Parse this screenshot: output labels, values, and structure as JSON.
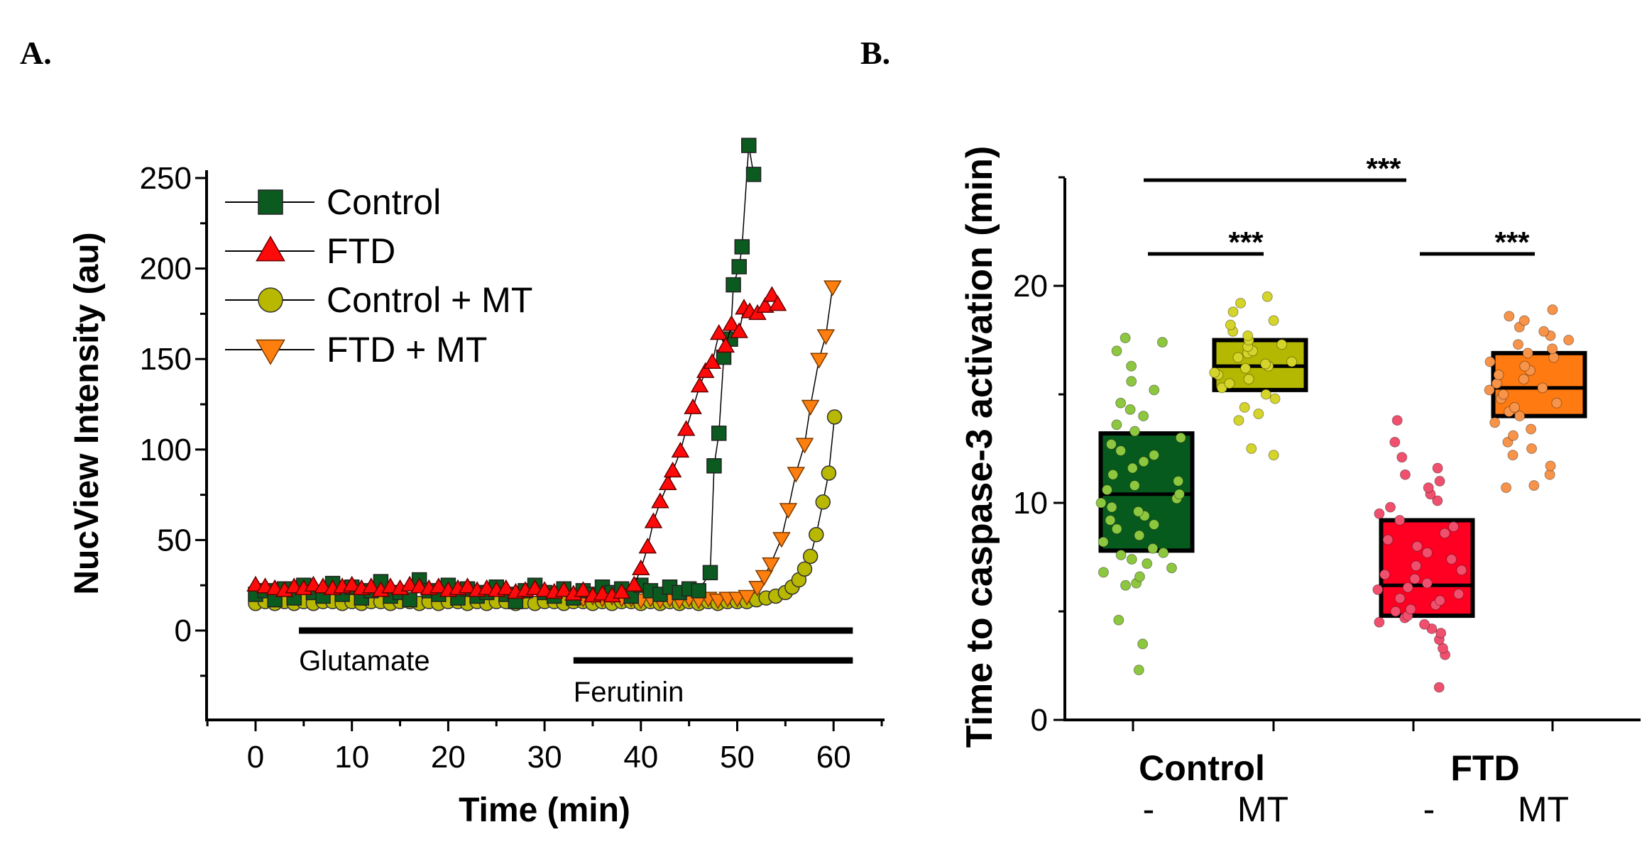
{
  "panel_labels": {
    "a": "A.",
    "b": "B."
  },
  "colors": {
    "control": "#0b5a1f",
    "ftd": "#ff0a0a",
    "control_mt": "#b8b800",
    "ftd_mt": "#ff7f0e",
    "box_control": "#075a1e",
    "box_control_mt": "#b5b800",
    "box_ftd": "#ff0022",
    "box_ftd_mt": "#ff7a10",
    "dot_control": "#8dc63f",
    "dot_control_mt": "#d4d42a",
    "dot_ftd": "#f0506e",
    "dot_ftd_mt": "#f7944a"
  },
  "chart_data": [
    {
      "type": "line",
      "title": "",
      "xlabel": "Time (min)",
      "ylabel": "NucView Intensity (au)",
      "xlim": [
        -5,
        65
      ],
      "ylim": [
        -50,
        260
      ],
      "xticks": [
        "0",
        "10",
        "20",
        "30",
        "40",
        "50",
        "60"
      ],
      "xtick_values": [
        0,
        10,
        20,
        30,
        40,
        50,
        60
      ],
      "yticks": [
        "0",
        "50",
        "100",
        "150",
        "200",
        "250"
      ],
      "ytick_values": [
        0,
        50,
        100,
        150,
        200,
        250
      ],
      "legend_position": "top-left",
      "annotations": [
        {
          "label": "Glutamate",
          "from": 4.5,
          "to": 62
        },
        {
          "label": "Ferutinin",
          "from": 33,
          "to": 62
        }
      ],
      "series": [
        {
          "name": "Control",
          "marker": "square",
          "points": [
            [
              0,
              20
            ],
            [
              1,
              22
            ],
            [
              2,
              17
            ],
            [
              3,
              23
            ],
            [
              4,
              18
            ],
            [
              5,
              25
            ],
            [
              6,
              21
            ],
            [
              7,
              19
            ],
            [
              8,
              26
            ],
            [
              9,
              20
            ],
            [
              10,
              24
            ],
            [
              11,
              18
            ],
            [
              12,
              22
            ],
            [
              13,
              27
            ],
            [
              14,
              19
            ],
            [
              15,
              21
            ],
            [
              16,
              17
            ],
            [
              17,
              28
            ],
            [
              18,
              22
            ],
            [
              19,
              20
            ],
            [
              20,
              25
            ],
            [
              21,
              18
            ],
            [
              22,
              23
            ],
            [
              23,
              19
            ],
            [
              24,
              21
            ],
            [
              25,
              24
            ],
            [
              26,
              20
            ],
            [
              27,
              16
            ],
            [
              28,
              22
            ],
            [
              29,
              25
            ],
            [
              30,
              21
            ],
            [
              31,
              19
            ],
            [
              32,
              23
            ],
            [
              33,
              18
            ],
            [
              34,
              22
            ],
            [
              35,
              20
            ],
            [
              36,
              24
            ],
            [
              37,
              21
            ],
            [
              38,
              23
            ],
            [
              39,
              19
            ],
            [
              40,
              25
            ],
            [
              41,
              22
            ],
            [
              42,
              20
            ],
            [
              43,
              24
            ],
            [
              44,
              21
            ],
            [
              45,
              23
            ],
            [
              46,
              22
            ],
            [
              47.2,
              32
            ],
            [
              47.6,
              91
            ],
            [
              48.1,
              109
            ],
            [
              48.6,
              151
            ],
            [
              49.3,
              161
            ],
            [
              49.6,
              191
            ],
            [
              50.2,
              201
            ],
            [
              50.5,
              212
            ],
            [
              51.2,
              268
            ],
            [
              51.7,
              252
            ]
          ]
        },
        {
          "name": "FTD",
          "marker": "triangle-up",
          "points": [
            [
              0,
              25
            ],
            [
              1,
              24
            ],
            [
              2,
              23
            ],
            [
              3,
              22
            ],
            [
              4,
              24
            ],
            [
              5,
              23
            ],
            [
              6,
              25
            ],
            [
              7,
              24
            ],
            [
              8,
              23
            ],
            [
              9,
              24
            ],
            [
              10,
              25
            ],
            [
              11,
              23
            ],
            [
              12,
              24
            ],
            [
              13,
              22
            ],
            [
              14,
              24
            ],
            [
              15,
              23
            ],
            [
              16,
              25
            ],
            [
              17,
              24
            ],
            [
              18,
              23
            ],
            [
              19,
              24
            ],
            [
              20,
              22
            ],
            [
              21,
              23
            ],
            [
              22,
              24
            ],
            [
              23,
              22
            ],
            [
              24,
              23
            ],
            [
              25,
              22
            ],
            [
              26,
              23
            ],
            [
              27,
              21
            ],
            [
              28,
              22
            ],
            [
              29,
              23
            ],
            [
              30,
              22
            ],
            [
              31,
              21
            ],
            [
              32,
              22
            ],
            [
              33,
              20
            ],
            [
              34,
              22
            ],
            [
              35,
              19
            ],
            [
              36,
              20
            ],
            [
              37,
              19
            ],
            [
              38,
              21
            ],
            [
              39.3,
              25
            ],
            [
              40.0,
              34
            ],
            [
              40.7,
              46
            ],
            [
              41.3,
              60
            ],
            [
              42.0,
              71
            ],
            [
              42.8,
              81
            ],
            [
              43.3,
              88
            ],
            [
              44.1,
              99
            ],
            [
              44.7,
              111
            ],
            [
              45.4,
              123
            ],
            [
              46.1,
              135
            ],
            [
              46.7,
              143
            ],
            [
              47.4,
              148
            ],
            [
              48.1,
              164
            ],
            [
              48.8,
              157
            ],
            [
              49.4,
              169
            ],
            [
              50.2,
              165
            ],
            [
              50.7,
              178
            ],
            [
              51.3,
              176
            ],
            [
              52.1,
              175
            ],
            [
              52.9,
              179
            ],
            [
              53.6,
              185
            ],
            [
              54.2,
              180
            ]
          ]
        },
        {
          "name": "Control + MT",
          "marker": "circle",
          "points": [
            [
              0,
              15
            ],
            [
              1,
              16
            ],
            [
              2,
              15
            ],
            [
              3,
              16
            ],
            [
              4,
              15
            ],
            [
              5,
              16
            ],
            [
              6,
              15
            ],
            [
              7,
              16
            ],
            [
              8,
              16
            ],
            [
              9,
              15
            ],
            [
              10,
              16
            ],
            [
              11,
              15
            ],
            [
              12,
              16
            ],
            [
              13,
              16
            ],
            [
              14,
              15
            ],
            [
              15,
              16
            ],
            [
              16,
              16
            ],
            [
              17,
              15
            ],
            [
              18,
              16
            ],
            [
              19,
              15
            ],
            [
              20,
              16
            ],
            [
              21,
              16
            ],
            [
              22,
              15
            ],
            [
              23,
              16
            ],
            [
              24,
              15
            ],
            [
              25,
              16
            ],
            [
              26,
              16
            ],
            [
              27,
              15
            ],
            [
              28,
              16
            ],
            [
              29,
              15
            ],
            [
              30,
              16
            ],
            [
              31,
              16
            ],
            [
              32,
              15
            ],
            [
              33,
              16
            ],
            [
              34,
              16
            ],
            [
              35,
              15
            ],
            [
              36,
              16
            ],
            [
              37,
              15
            ],
            [
              38,
              16
            ],
            [
              39,
              16
            ],
            [
              40,
              15
            ],
            [
              41,
              16
            ],
            [
              42,
              15
            ],
            [
              43,
              16
            ],
            [
              44,
              15
            ],
            [
              45,
              16
            ],
            [
              46,
              15
            ],
            [
              47,
              16
            ],
            [
              48,
              15
            ],
            [
              49,
              16
            ],
            [
              50,
              16
            ],
            [
              51,
              16
            ],
            [
              52,
              17
            ],
            [
              53,
              18
            ],
            [
              54,
              19
            ],
            [
              55,
              21
            ],
            [
              55.7,
              24
            ],
            [
              56.4,
              28
            ],
            [
              57.0,
              34
            ],
            [
              57.6,
              41
            ],
            [
              58.2,
              53
            ],
            [
              58.9,
              71
            ],
            [
              59.5,
              87
            ],
            [
              60.1,
              118
            ]
          ]
        },
        {
          "name": "FTD + MT",
          "marker": "triangle-down",
          "points": [
            [
              33,
              19
            ],
            [
              34,
              18
            ],
            [
              35,
              19
            ],
            [
              36,
              18
            ],
            [
              37,
              19
            ],
            [
              38,
              18
            ],
            [
              39,
              18
            ],
            [
              40,
              17
            ],
            [
              41,
              18
            ],
            [
              42,
              17
            ],
            [
              43,
              18
            ],
            [
              44,
              17
            ],
            [
              45,
              18
            ],
            [
              46,
              17
            ],
            [
              47,
              18
            ],
            [
              48,
              17
            ],
            [
              49,
              18
            ],
            [
              50,
              18
            ],
            [
              51,
              19
            ],
            [
              52.1,
              24
            ],
            [
              52.8,
              30
            ],
            [
              53.5,
              37
            ],
            [
              54.6,
              51
            ],
            [
              55.3,
              67
            ],
            [
              56.1,
              87
            ],
            [
              57.0,
              103
            ],
            [
              57.6,
              124
            ],
            [
              58.5,
              150
            ],
            [
              59.2,
              163
            ],
            [
              59.9,
              190
            ]
          ]
        }
      ]
    },
    {
      "type": "box",
      "title": "",
      "xlabel": "",
      "ylabel": "Time to caspase-3 activation (min)",
      "ylim": [
        0,
        25
      ],
      "yticks": [
        "0",
        "10",
        "20"
      ],
      "ytick_values": [
        0,
        10,
        20
      ],
      "group_labels": [
        "Control",
        "FTD"
      ],
      "treatment_labels": [
        "-",
        "MT",
        "-",
        "MT"
      ],
      "significance": [
        {
          "label": "***",
          "between": [
            "Control -",
            "FTD -"
          ]
        },
        {
          "label": "***",
          "between": [
            "Control -",
            "Control MT"
          ]
        },
        {
          "label": "***",
          "between": [
            "FTD -",
            "FTD MT"
          ]
        }
      ],
      "boxes": [
        {
          "name": "Control -",
          "q1": 7.8,
          "median": 10.4,
          "q3": 13.2,
          "points": [
            2.3,
            3.5,
            4.6,
            6.2,
            6.3,
            6.6,
            6.8,
            7.0,
            7.2,
            7.4,
            7.6,
            7.7,
            7.9,
            8.2,
            8.5,
            8.8,
            9.0,
            9.2,
            9.4,
            9.6,
            9.8,
            10.0,
            10.2,
            10.4,
            10.6,
            10.8,
            11.0,
            11.3,
            11.6,
            11.9,
            12.2,
            12.4,
            12.7,
            13.0,
            13.3,
            13.6,
            14.0,
            14.3,
            14.6,
            15.2,
            15.6,
            16.3,
            17.0,
            17.4,
            17.6
          ]
        },
        {
          "name": "Control MT",
          "q1": 15.2,
          "median": 16.3,
          "q3": 17.5,
          "points": [
            12.2,
            12.5,
            13.8,
            14.1,
            14.4,
            14.8,
            15.0,
            15.3,
            15.5,
            15.7,
            15.9,
            16.0,
            16.2,
            16.3,
            16.4,
            16.5,
            16.7,
            16.9,
            17.0,
            17.2,
            17.3,
            17.5,
            17.7,
            17.9,
            18.2,
            18.4,
            18.8,
            19.2,
            19.5
          ]
        },
        {
          "name": "FTD -",
          "q1": 4.8,
          "median": 6.2,
          "q3": 9.2,
          "points": [
            1.5,
            3.0,
            3.3,
            3.7,
            4.0,
            4.2,
            4.4,
            4.5,
            4.7,
            4.8,
            5.0,
            5.1,
            5.3,
            5.5,
            5.6,
            5.8,
            6.0,
            6.1,
            6.3,
            6.5,
            6.7,
            6.9,
            7.1,
            7.4,
            7.7,
            8.0,
            8.3,
            8.6,
            8.9,
            9.2,
            9.5,
            9.8,
            10.1,
            10.4,
            10.7,
            11.0,
            11.3,
            11.6,
            12.1,
            12.8,
            13.8
          ]
        },
        {
          "name": "FTD MT",
          "q1": 14.0,
          "median": 15.3,
          "q3": 16.9,
          "points": [
            10.7,
            10.8,
            11.3,
            11.7,
            12.2,
            12.5,
            12.8,
            13.1,
            13.4,
            13.7,
            14.0,
            14.2,
            14.4,
            14.6,
            14.8,
            15.0,
            15.2,
            15.3,
            15.5,
            15.7,
            15.9,
            16.1,
            16.3,
            16.5,
            16.7,
            16.9,
            17.1,
            17.3,
            17.5,
            17.7,
            17.9,
            18.1,
            18.4,
            18.6,
            18.9
          ]
        }
      ]
    }
  ]
}
